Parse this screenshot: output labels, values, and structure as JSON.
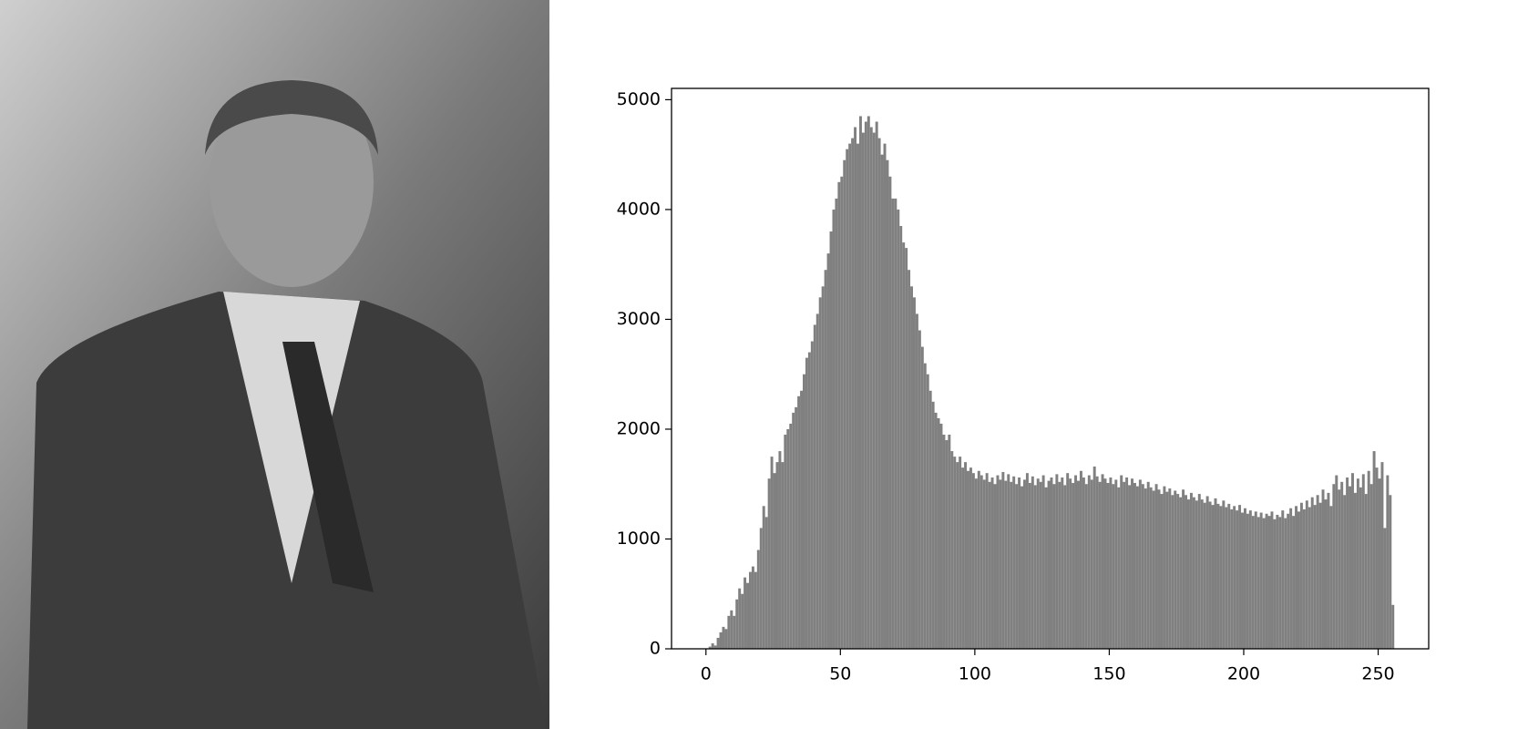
{
  "chart_data": {
    "type": "histogram",
    "color": "#808080",
    "bins": [
      0,
      1,
      2,
      3,
      4,
      5,
      6,
      7,
      8,
      9,
      10,
      11,
      12,
      13,
      14,
      15,
      16,
      17,
      18,
      19,
      20,
      21,
      22,
      23,
      24,
      25,
      26,
      27,
      28,
      29,
      30,
      31,
      32,
      33,
      34,
      35,
      36,
      37,
      38,
      39,
      40,
      41,
      42,
      43,
      44,
      45,
      46,
      47,
      48,
      49,
      50,
      51,
      52,
      53,
      54,
      55,
      56,
      57,
      58,
      59,
      60,
      61,
      62,
      63,
      64,
      65,
      66,
      67,
      68,
      69,
      70,
      71,
      72,
      73,
      74,
      75,
      76,
      77,
      78,
      79,
      80,
      81,
      82,
      83,
      84,
      85,
      86,
      87,
      88,
      89,
      90,
      91,
      92,
      93,
      94,
      95,
      96,
      97,
      98,
      99,
      100,
      101,
      102,
      103,
      104,
      105,
      106,
      107,
      108,
      109,
      110,
      111,
      112,
      113,
      114,
      115,
      116,
      117,
      118,
      119,
      120,
      121,
      122,
      123,
      124,
      125,
      126,
      127,
      128,
      129,
      130,
      131,
      132,
      133,
      134,
      135,
      136,
      137,
      138,
      139,
      140,
      141,
      142,
      143,
      144,
      145,
      146,
      147,
      148,
      149,
      150,
      151,
      152,
      153,
      154,
      155,
      156,
      157,
      158,
      159,
      160,
      161,
      162,
      163,
      164,
      165,
      166,
      167,
      168,
      169,
      170,
      171,
      172,
      173,
      174,
      175,
      176,
      177,
      178,
      179,
      180,
      181,
      182,
      183,
      184,
      185,
      186,
      187,
      188,
      189,
      190,
      191,
      192,
      193,
      194,
      195,
      196,
      197,
      198,
      199,
      200,
      201,
      202,
      203,
      204,
      205,
      206,
      207,
      208,
      209,
      210,
      211,
      212,
      213,
      214,
      215,
      216,
      217,
      218,
      219,
      220,
      221,
      222,
      223,
      224,
      225,
      226,
      227,
      228,
      229,
      230,
      231,
      232,
      233,
      234,
      235,
      236,
      237,
      238,
      239,
      240,
      241,
      242,
      243,
      244,
      245,
      246,
      247,
      248,
      249,
      250,
      251,
      252,
      253,
      254,
      255,
      256
    ],
    "values": [
      0,
      20,
      50,
      30,
      100,
      150,
      200,
      180,
      300,
      350,
      300,
      450,
      550,
      500,
      650,
      600,
      700,
      750,
      700,
      900,
      1100,
      1300,
      1200,
      1550,
      1750,
      1600,
      1700,
      1800,
      1700,
      1950,
      2000,
      2050,
      2150,
      2200,
      2300,
      2350,
      2500,
      2650,
      2700,
      2800,
      2950,
      3050,
      3200,
      3300,
      3450,
      3600,
      3800,
      4000,
      4100,
      4250,
      4300,
      4450,
      4550,
      4600,
      4650,
      4750,
      4600,
      4850,
      4700,
      4800,
      4850,
      4750,
      4700,
      4800,
      4650,
      4500,
      4600,
      4450,
      4300,
      4100,
      4100,
      4000,
      3850,
      3700,
      3650,
      3450,
      3300,
      3200,
      3050,
      2900,
      2750,
      2600,
      2500,
      2350,
      2250,
      2150,
      2100,
      2050,
      1950,
      1900,
      1950,
      1800,
      1750,
      1700,
      1750,
      1650,
      1700,
      1620,
      1650,
      1600,
      1550,
      1620,
      1580,
      1540,
      1600,
      1520,
      1560,
      1500,
      1580,
      1540,
      1610,
      1530,
      1590,
      1520,
      1570,
      1500,
      1560,
      1480,
      1540,
      1600,
      1510,
      1570,
      1490,
      1550,
      1520,
      1580,
      1470,
      1530,
      1560,
      1500,
      1590,
      1520,
      1560,
      1490,
      1600,
      1550,
      1510,
      1580,
      1530,
      1620,
      1560,
      1500,
      1580,
      1540,
      1660,
      1570,
      1520,
      1590,
      1550,
      1510,
      1560,
      1500,
      1540,
      1470,
      1580,
      1520,
      1560,
      1490,
      1550,
      1510,
      1480,
      1540,
      1500,
      1460,
      1520,
      1470,
      1440,
      1500,
      1450,
      1410,
      1480,
      1430,
      1460,
      1400,
      1440,
      1410,
      1380,
      1450,
      1400,
      1360,
      1420,
      1380,
      1350,
      1410,
      1360,
      1330,
      1390,
      1340,
      1310,
      1370,
      1320,
      1300,
      1350,
      1290,
      1320,
      1270,
      1300,
      1260,
      1310,
      1240,
      1280,
      1230,
      1260,
      1210,
      1250,
      1200,
      1240,
      1190,
      1230,
      1210,
      1250,
      1180,
      1220,
      1200,
      1260,
      1190,
      1230,
      1280,
      1210,
      1300,
      1250,
      1330,
      1270,
      1350,
      1290,
      1380,
      1310,
      1400,
      1330,
      1450,
      1360,
      1420,
      1300,
      1500,
      1580,
      1450,
      1520,
      1400,
      1560,
      1480,
      1600,
      1420,
      1550,
      1470,
      1590,
      1410,
      1620,
      1500,
      1800,
      1650,
      1550,
      1700,
      1100,
      1580,
      1400,
      400
    ],
    "xlim": [
      -12.8,
      268.8
    ],
    "ylim": [
      0,
      5103
    ],
    "xticks": [
      0,
      50,
      100,
      150,
      200,
      250
    ],
    "yticks": [
      0,
      1000,
      2000,
      3000,
      4000,
      5000
    ]
  }
}
